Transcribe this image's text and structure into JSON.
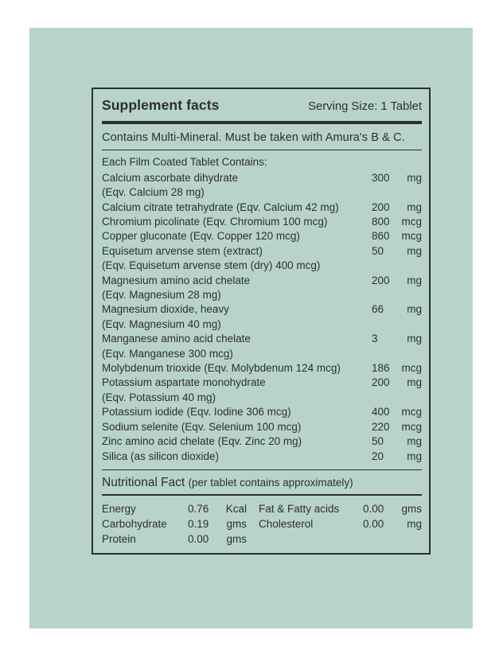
{
  "colors": {
    "page_background": "#ffffff",
    "panel_background": "#b8d4c8",
    "ink": "#2d2f2e"
  },
  "label": {
    "title": "Supplement facts",
    "serving_size": "Serving Size: 1 Tablet",
    "contains_note": "Contains Multi-Mineral. Must be taken with Amura's B & C.",
    "each_tablet_heading": "Each Film Coated Tablet Contains:",
    "ingredients": [
      {
        "name": "Calcium ascorbate dihydrate",
        "sub": "(Eqv. Calcium 28 mg)",
        "amount": "300",
        "unit": "mg"
      },
      {
        "name": "Calcium citrate tetrahydrate (Eqv. Calcium 42 mg)",
        "amount": "200",
        "unit": "mg"
      },
      {
        "name": "Chromium picolinate (Eqv. Chromium 100 mcg)",
        "amount": "800",
        "unit": "mcg"
      },
      {
        "name": "Copper gluconate (Eqv. Copper 120 mcg)",
        "amount": "860",
        "unit": "mcg"
      },
      {
        "name": "Equisetum arvense stem (extract)",
        "sub": "(Eqv. Equisetum arvense stem (dry) 400 mcg)",
        "amount": "50",
        "unit": "mg"
      },
      {
        "name": "Magnesium amino acid chelate",
        "sub": "(Eqv. Magnesium 28 mg)",
        "amount": "200",
        "unit": "mg"
      },
      {
        "name": "Magnesium dioxide, heavy",
        "sub": "(Eqv. Magnesium 40 mg)",
        "amount": "66",
        "unit": "mg"
      },
      {
        "name": "Manganese amino acid chelate",
        "sub": "(Eqv. Manganese 300 mcg)",
        "amount": "3",
        "unit": "mg"
      },
      {
        "name": "Molybdenum trioxide (Eqv. Molybdenum 124 mcg)",
        "amount": "186",
        "unit": "mcg"
      },
      {
        "name": "Potassium aspartate monohydrate",
        "sub": "(Eqv. Potassium 40 mg)",
        "amount": "200",
        "unit": "mg"
      },
      {
        "name": "Potassium iodide (Eqv. Iodine 306 mcg)",
        "amount": "400",
        "unit": "mcg"
      },
      {
        "name": "Sodium selenite (Eqv. Selenium 100 mcg)",
        "amount": "220",
        "unit": "mcg"
      },
      {
        "name": "Zinc amino acid chelate (Eqv. Zinc 20 mg)",
        "amount": "50",
        "unit": "mg"
      },
      {
        "name": "Silica (as silicon dioxide)",
        "amount": "20",
        "unit": "mg"
      }
    ],
    "nutritional_heading": {
      "title": "Nutritional Fact ",
      "subtitle": "(per tablet contains approximately)"
    },
    "nutrition": {
      "left": [
        {
          "name": "Energy",
          "value": "0.76",
          "unit": "Kcal"
        },
        {
          "name": "Carbohydrate",
          "value": "0.19",
          "unit": "gms"
        },
        {
          "name": "Protein",
          "value": "0.00",
          "unit": "gms"
        }
      ],
      "right": [
        {
          "name": "Fat & Fatty acids",
          "value": "0.00",
          "unit": "gms"
        },
        {
          "name": "Cholesterol",
          "value": "0.00",
          "unit": "mg"
        }
      ]
    }
  }
}
